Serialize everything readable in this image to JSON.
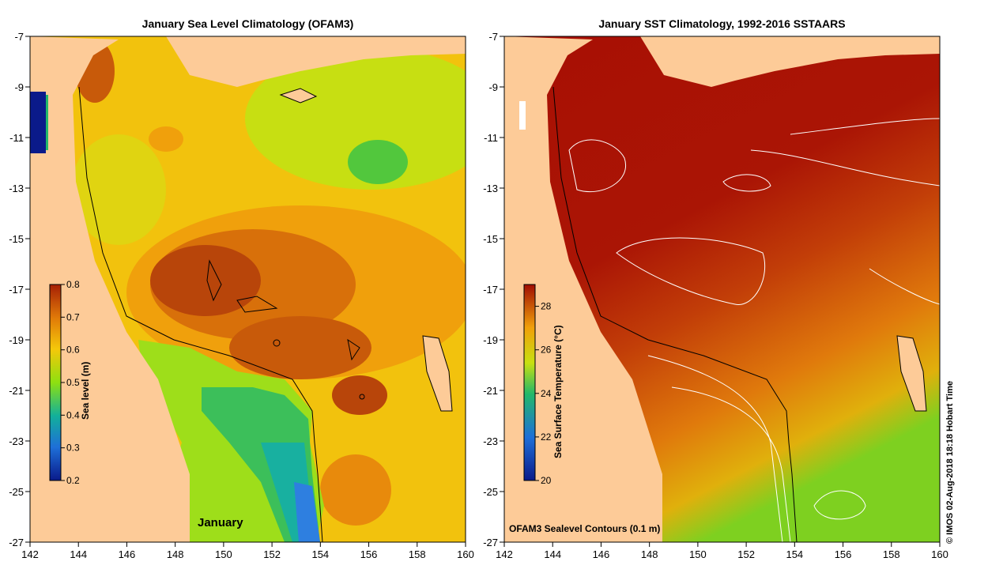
{
  "panels": [
    {
      "title": "January Sea Level Climatology (OFAM3)",
      "colorbar": {
        "label": "Sea level (m)",
        "min": 0.2,
        "max": 0.8,
        "ticks": [
          "0.2",
          "0.3",
          "0.4",
          "0.5",
          "0.6",
          "0.7",
          "0.8"
        ]
      },
      "annotation": "January"
    },
    {
      "title": "January SST Climatology, 1992-2016 SSTAARS",
      "colorbar": {
        "label": "Sea Surface Temperature (°C)",
        "min": 20,
        "max": 29,
        "ticks": [
          "20",
          "22",
          "24",
          "26",
          "28"
        ]
      },
      "annotation": "OFAM3 Sealevel Contours (0.1 m)"
    }
  ],
  "x_ticks": [
    "142",
    "144",
    "146",
    "148",
    "150",
    "152",
    "154",
    "156",
    "158",
    "160"
  ],
  "y_ticks": [
    "-7",
    "-9",
    "-11",
    "-13",
    "-15",
    "-17",
    "-19",
    "-21",
    "-23",
    "-25",
    "-27"
  ],
  "timestamp": "© IMOS 02-Aug-2018 18:18 Hobart Time",
  "colors": {
    "land": "#fdcb98",
    "sea_high": "#a61f06",
    "sea_mid": "#f5a20c",
    "sea_low": "#54c43a",
    "sst_warm": "#a80f04"
  }
}
